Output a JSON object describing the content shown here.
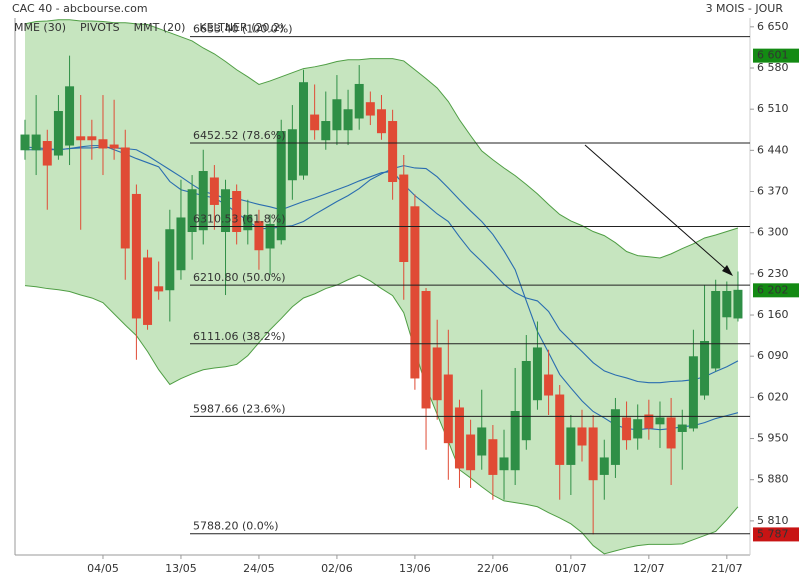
{
  "chart_data": {
    "type": "candlestick",
    "title": "CAC 40 - abcbourse.com",
    "subtitle": "3 MOIS - JOUR",
    "categories": [
      null,
      null,
      null,
      null,
      null,
      null,
      null,
      "04/05",
      null,
      null,
      null,
      null,
      null,
      null,
      "13/05",
      null,
      null,
      null,
      null,
      null,
      null,
      "24/05",
      null,
      null,
      null,
      null,
      null,
      null,
      "02/06",
      null,
      null,
      null,
      null,
      null,
      null,
      "13/06",
      null,
      null,
      null,
      null,
      null,
      null,
      "22/06",
      null,
      null,
      null,
      null,
      null,
      null,
      "01/07",
      null,
      null,
      null,
      null,
      null,
      null,
      "12/07",
      null,
      null,
      null,
      null,
      null,
      null,
      "21/07",
      null
    ],
    "open": [
      6441,
      6441,
      6455,
      6432,
      6449,
      6463,
      6463,
      6458,
      6449,
      6444,
      6365,
      6257,
      6208,
      6203,
      6237,
      6302,
      6305,
      6393,
      6302,
      6370,
      6305,
      6319,
      6274,
      6288,
      6390,
      6398,
      6500,
      6458,
      6475,
      6475,
      6495,
      6521,
      6509,
      6489,
      6398,
      6344,
      6200,
      6104,
      6058,
      6002,
      5956,
      5922,
      5948,
      5897,
      5897,
      5948,
      6016,
      6058,
      6024,
      5906,
      5968,
      5968,
      5889,
      5906,
      5985,
      5951,
      5990,
      5975,
      5985,
      5962,
      5968,
      6024,
      6070,
      6157,
      6155
    ],
    "high": [
      6492,
      6534,
      6475,
      6534,
      6601,
      6534,
      6492,
      6534,
      6526,
      6475,
      6382,
      6271,
      6251,
      6339,
      6390,
      6398,
      6441,
      6415,
      6390,
      6382,
      6356,
      6339,
      6331,
      6492,
      6517,
      6577,
      6552,
      6540,
      6568,
      6543,
      6585,
      6540,
      6534,
      6509,
      6432,
      6365,
      6206,
      6152,
      6135,
      6016,
      5982,
      6033,
      5973,
      5965,
      6070,
      6126,
      6149,
      6101,
      6041,
      5990,
      5999,
      5990,
      5948,
      6019,
      6013,
      6008,
      6016,
      6013,
      6019,
      5999,
      6135,
      6211,
      6220,
      6217,
      6234
    ],
    "low": [
      6424,
      6398,
      6339,
      6424,
      6415,
      6305,
      6424,
      6398,
      6424,
      6220,
      6084,
      6135,
      6186,
      6149,
      6220,
      6254,
      6280,
      6305,
      6194,
      6280,
      6280,
      6237,
      6228,
      6280,
      6356,
      6390,
      6458,
      6441,
      6449,
      6449,
      6475,
      6483,
      6458,
      6356,
      6186,
      6033,
      5931,
      5982,
      5880,
      5866,
      5866,
      5897,
      5846,
      5846,
      5871,
      5931,
      5999,
      5990,
      5846,
      5854,
      5911,
      5787,
      5846,
      5883,
      5931,
      5931,
      5948,
      5934,
      5871,
      5897,
      5962,
      6016,
      6064,
      6135,
      6149
    ],
    "close": [
      6466,
      6466,
      6415,
      6506,
      6548,
      6458,
      6458,
      6444,
      6444,
      6274,
      6155,
      6144,
      6201,
      6305,
      6325,
      6373,
      6404,
      6348,
      6373,
      6302,
      6329,
      6271,
      6314,
      6472,
      6475,
      6555,
      6475,
      6489,
      6526,
      6509,
      6552,
      6500,
      6470,
      6387,
      6251,
      6053,
      6002,
      6016,
      5943,
      5900,
      5897,
      5968,
      5889,
      5917,
      5996,
      6081,
      6104,
      6024,
      5906,
      5968,
      5939,
      5880,
      5917,
      5999,
      5948,
      5982,
      5968,
      5985,
      5934,
      5973,
      6089,
      6115,
      6200,
      6200,
      6202
    ],
    "up_color": "#2f8f46",
    "down_color": "#e04b35",
    "series": [
      {
        "name": "MME (30)",
        "color": "#2a6db0",
        "values": [
          6441,
          6441,
          6441,
          6441,
          6443,
          6444,
          6444,
          6446,
          6444,
          6443,
          6441,
          6431,
          6419,
          6407,
          6395,
          6382,
          6370,
          6365,
          6358,
          6358,
          6353,
          6348,
          6344,
          6339,
          6346,
          6353,
          6359,
          6366,
          6373,
          6380,
          6388,
          6395,
          6402,
          6404,
          6382,
          6363,
          6348,
          6332,
          6319,
          6293,
          6269,
          6251,
          6232,
          6212,
          6198,
          6189,
          6184,
          6166,
          6135,
          6116,
          6098,
          6079,
          6065,
          6058,
          6053,
          6047,
          6045,
          6045,
          6047,
          6048,
          6050,
          6055,
          6064,
          6072,
          6082
        ]
      },
      {
        "name": "MMT (20)",
        "color": "#2a6db0",
        "values": [
          6446,
          6444,
          6443,
          6441,
          6443,
          6446,
          6448,
          6448,
          6441,
          6434,
          6426,
          6419,
          6412,
          6387,
          6373,
          6368,
          6363,
          6359,
          6348,
          6334,
          6320,
          6307,
          6307,
          6310,
          6312,
          6319,
          6331,
          6342,
          6353,
          6363,
          6375,
          6390,
          6400,
          6409,
          6414,
          6410,
          6409,
          6395,
          6376,
          6356,
          6337,
          6319,
          6297,
          6269,
          6237,
          6184,
          6132,
          6096,
          6059,
          6036,
          6014,
          5996,
          5985,
          5973,
          5967,
          5965,
          5967,
          5965,
          5967,
          5970,
          5972,
          5977,
          5984,
          5989,
          5994
        ]
      }
    ],
    "band": {
      "name": "KELTNER (20,2)",
      "color": "#4f9e44",
      "fill": "#c6e5bf",
      "upper": [
        6655,
        6659,
        6660,
        6662,
        6662,
        6660,
        6660,
        6659,
        6657,
        6657,
        6655,
        6654,
        6647,
        6640,
        6633,
        6626,
        6614,
        6604,
        6591,
        6577,
        6565,
        6552,
        6558,
        6565,
        6572,
        6579,
        6582,
        6586,
        6591,
        6594,
        6594,
        6596,
        6596,
        6596,
        6592,
        6577,
        6562,
        6546,
        6523,
        6492,
        6465,
        6439,
        6424,
        6410,
        6397,
        6382,
        6366,
        6348,
        6331,
        6320,
        6312,
        6302,
        6295,
        6283,
        6268,
        6261,
        6259,
        6257,
        6264,
        6273,
        6281,
        6291,
        6296,
        6302,
        6308
      ],
      "lower": [
        6210,
        6208,
        6205,
        6203,
        6200,
        6194,
        6189,
        6181,
        6162,
        6143,
        6125,
        6098,
        6067,
        6042,
        6052,
        6060,
        6067,
        6070,
        6072,
        6076,
        6091,
        6113,
        6135,
        6154,
        6174,
        6189,
        6196,
        6205,
        6211,
        6220,
        6228,
        6218,
        6205,
        6193,
        6164,
        6101,
        6038,
        5991,
        5945,
        5897,
        5883,
        5868,
        5854,
        5844,
        5841,
        5838,
        5834,
        5824,
        5815,
        5805,
        5790,
        5768,
        5754,
        5759,
        5764,
        5768,
        5770,
        5770,
        5770,
        5771,
        5778,
        5785,
        5792,
        5812,
        5834
      ]
    },
    "pivots": {
      "name": "PIVOTS",
      "color": "#222222",
      "levels": [
        {
          "value": 6633.4,
          "label": "6633.40 (100.0%)"
        },
        {
          "value": 6452.52,
          "label": "6452.52 (78.6%)"
        },
        {
          "value": 6310.53,
          "label": "6310.53 (61.8%)"
        },
        {
          "value": 6210.8,
          "label": "6210.80 (50.0%)"
        },
        {
          "value": 6111.06,
          "label": "6111.06 (38.2%)"
        },
        {
          "value": 5987.66,
          "label": "5987.66 (23.6%)"
        },
        {
          "value": 5788.2,
          "label": "5788.20 (0.0%)"
        }
      ]
    },
    "ylim": [
      5752,
      6665
    ],
    "yticks": [
      {
        "value": 5810,
        "label": "5 810"
      },
      {
        "value": 5880,
        "label": "5 880"
      },
      {
        "value": 5950,
        "label": "5 950"
      },
      {
        "value": 6020,
        "label": "6 020"
      },
      {
        "value": 6090,
        "label": "6 090"
      },
      {
        "value": 6160,
        "label": "6 160"
      },
      {
        "value": 6230,
        "label": "6 230"
      },
      {
        "value": 6300,
        "label": "6 300"
      },
      {
        "value": 6370,
        "label": "6 370"
      },
      {
        "value": 6440,
        "label": "6 440"
      },
      {
        "value": 6510,
        "label": "6 510"
      },
      {
        "value": 6580,
        "label": "6 580"
      },
      {
        "value": 6650,
        "label": "6 650"
      }
    ],
    "markers": [
      {
        "value": 6601,
        "label": "6 601",
        "color": "#138a13"
      },
      {
        "value": 6202,
        "label": "6 202",
        "color": "#138a13"
      },
      {
        "value": 5787,
        "label": "5 787",
        "color": "#c81414"
      }
    ]
  }
}
